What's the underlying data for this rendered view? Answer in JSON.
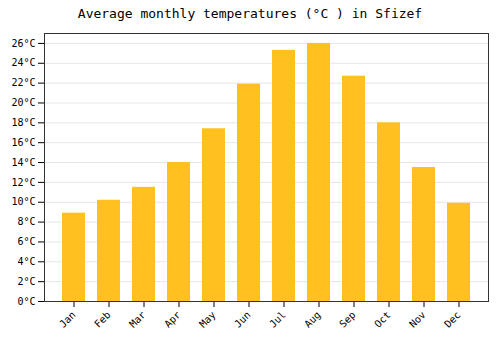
{
  "chart_data": {
    "type": "bar",
    "title": "Average monthly temperatures (°C ) in Sfizef",
    "categories": [
      "Jan",
      "Feb",
      "Mar",
      "Apr",
      "May",
      "Jun",
      "Jul",
      "Aug",
      "Sep",
      "Oct",
      "Nov",
      "Dec"
    ],
    "values": [
      8.9,
      10.2,
      11.5,
      14.0,
      17.4,
      21.9,
      25.3,
      26.0,
      22.7,
      18.0,
      13.5,
      9.9
    ],
    "color": "#FFC020",
    "ylim": [
      0,
      27
    ],
    "yticks": [
      {
        "value": 0,
        "label": "0°C"
      },
      {
        "value": 2,
        "label": "2°C"
      },
      {
        "value": 4,
        "label": "4°C"
      },
      {
        "value": 6,
        "label": "6°C"
      },
      {
        "value": 8,
        "label": "8°C"
      },
      {
        "value": 10,
        "label": "10°C"
      },
      {
        "value": 12,
        "label": "12°C"
      },
      {
        "value": 14,
        "label": "14°C"
      },
      {
        "value": 16,
        "label": "16°C"
      },
      {
        "value": 18,
        "label": "18°C"
      },
      {
        "value": 20,
        "label": "20°C"
      },
      {
        "value": 22,
        "label": "22°C"
      },
      {
        "value": 24,
        "label": "24°C"
      },
      {
        "value": 26,
        "label": "26°C"
      }
    ],
    "grid": true
  }
}
